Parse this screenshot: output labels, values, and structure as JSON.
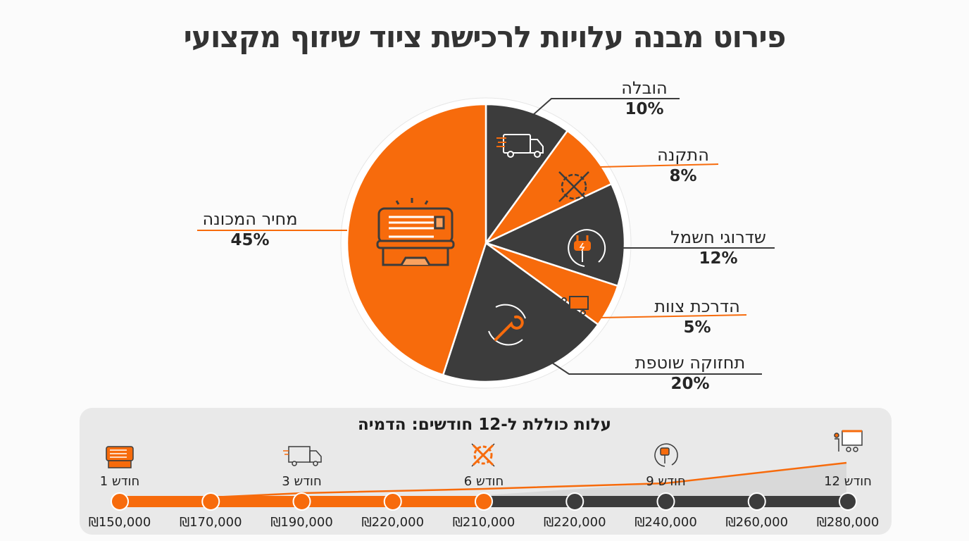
{
  "title": "פירוט מבנה עלויות לרכישת ציוד שיזוף מקצועי",
  "colors": {
    "orange": "#f76b0c",
    "dark": "#3c3c3c",
    "panel": "#e9e9e9"
  },
  "chart_data": [
    {
      "type": "pie",
      "start": "top",
      "direction": "clockwise",
      "slices": [
        {
          "label": "הובלה",
          "value": 10,
          "display": "10%",
          "color": "#3c3c3c",
          "icon": "delivery-truck-icon"
        },
        {
          "label": "התקנה",
          "value": 8,
          "display": "8%",
          "color": "#f76b0c",
          "icon": "tools-gear-icon"
        },
        {
          "label": "שדרוגי חשמל",
          "value": 12,
          "display": "12%",
          "color": "#3c3c3c",
          "icon": "electric-plug-icon"
        },
        {
          "label": "הדרכת צוות",
          "value": 5,
          "display": "5%",
          "color": "#f76b0c",
          "icon": "training-presentation-icon"
        },
        {
          "label": "תחזוקה שוטפת",
          "value": 20,
          "display": "20%",
          "color": "#3c3c3c",
          "icon": "maintenance-wrench-icon"
        },
        {
          "label": "מחיר המכונה",
          "value": 45,
          "display": "45%",
          "color": "#f76b0c",
          "icon": "tanning-bed-icon"
        }
      ]
    },
    {
      "type": "line",
      "title": "עלות כוללת ל-12 חודשים: הדמיה",
      "points": [
        "₪150,000",
        "₪170,000",
        "₪190,000",
        "₪220,000",
        "₪210,000",
        "₪220,000",
        "₪240,000",
        "₪260,000",
        "₪280,000"
      ],
      "values": [
        150000,
        170000,
        190000,
        220000,
        210000,
        220000,
        240000,
        260000,
        280000
      ],
      "highlighted_points": 5,
      "milestones": [
        {
          "label": "חודש 1",
          "point": 0,
          "icon": "tanning-bed-icon"
        },
        {
          "label": "חודש 3",
          "point": 2,
          "icon": "delivery-truck-icon"
        },
        {
          "label": "חודש 6",
          "point": 4,
          "icon": "tools-gear-icon"
        },
        {
          "label": "חודש 9",
          "point": 6,
          "icon": "electric-plug-icon"
        },
        {
          "label": "חודש 12",
          "point": 8,
          "icon": "training-presentation-icon"
        }
      ]
    }
  ]
}
